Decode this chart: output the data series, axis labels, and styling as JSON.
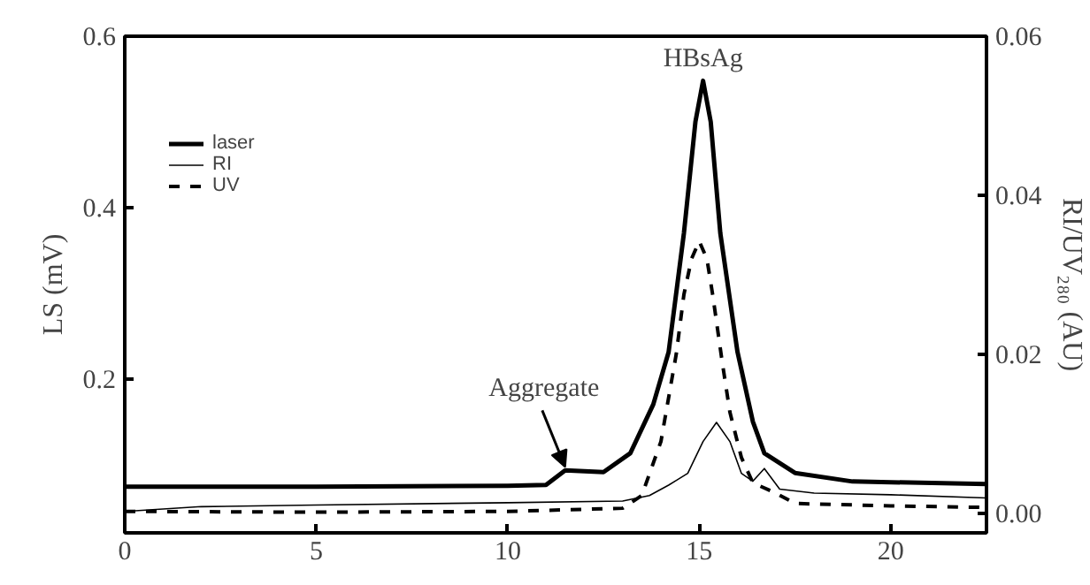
{
  "chart_data": {
    "type": "line",
    "ylabel": "LS (mV)",
    "y2label": "RI/UV₂₈₀ (AU)",
    "xlim": [
      0,
      22.5
    ],
    "xticks": [
      0,
      5,
      10,
      15,
      20
    ],
    "ylim": [
      0.02,
      0.6
    ],
    "yticks": [
      0.2,
      0.4,
      0.6
    ],
    "y2lim": [
      -0.0025,
      0.06
    ],
    "y2ticks": [
      {
        "value": 0,
        "label": "0.00"
      },
      {
        "value": 0.02,
        "label": "0.02"
      },
      {
        "value": 0.04,
        "label": "0.04"
      },
      {
        "value": 0.06,
        "label": "0.06"
      }
    ],
    "legend": "top left",
    "grid": false,
    "series": [
      {
        "name": "laser",
        "color": "#000000",
        "line_style": "solid",
        "x": [
          0,
          5,
          10,
          11,
          11.5,
          12,
          12.5,
          13.2,
          13.8,
          14.2,
          14.6,
          14.9,
          15.1,
          15.3,
          15.55,
          16.0,
          16.4,
          16.7,
          17.5,
          19,
          22.5
        ],
        "values": [
          0.074,
          0.074,
          0.075,
          0.076,
          0.093,
          0.092,
          0.091,
          0.113,
          0.17,
          0.231,
          0.37,
          0.5,
          0.548,
          0.5,
          0.37,
          0.231,
          0.15,
          0.113,
          0.09,
          0.08,
          0.077
        ]
      },
      {
        "name": "RI",
        "color": "#000000",
        "line_style": "solid",
        "axis": "y2",
        "x": [
          0,
          2,
          5,
          10,
          13,
          13.7,
          14.2,
          14.7,
          15.1,
          15.45,
          15.8,
          16.1,
          16.4,
          16.7,
          17.1,
          18,
          20,
          22.5
        ],
        "values": [
          0.0002,
          0.0008,
          0.001,
          0.0013,
          0.0015,
          0.0022,
          0.0035,
          0.005,
          0.009,
          0.0114,
          0.009,
          0.005,
          0.004,
          0.0056,
          0.003,
          0.0025,
          0.0023,
          0.0019
        ]
      },
      {
        "name": "UV",
        "color": "#000000",
        "line_style": "dashed",
        "axis": "y2",
        "x": [
          0,
          5,
          10,
          13,
          13.5,
          14,
          14.4,
          14.6,
          14.8,
          15.0,
          15.2,
          15.35,
          15.6,
          15.8,
          16.1,
          16.4,
          17.0,
          17.5,
          20,
          22.5
        ],
        "values": [
          0.0002,
          0.0001,
          0.0002,
          0.0006,
          0.0022,
          0.009,
          0.02,
          0.0275,
          0.032,
          0.0342,
          0.032,
          0.0275,
          0.019,
          0.0127,
          0.007,
          0.0038,
          0.0025,
          0.0012,
          0.0009,
          0.0007
        ]
      }
    ],
    "annotations": [
      {
        "text": "HBsAg",
        "x": 15.1,
        "y": 0.548
      },
      {
        "text": "Aggregate",
        "x": 11.5,
        "y": 0.093
      }
    ]
  }
}
